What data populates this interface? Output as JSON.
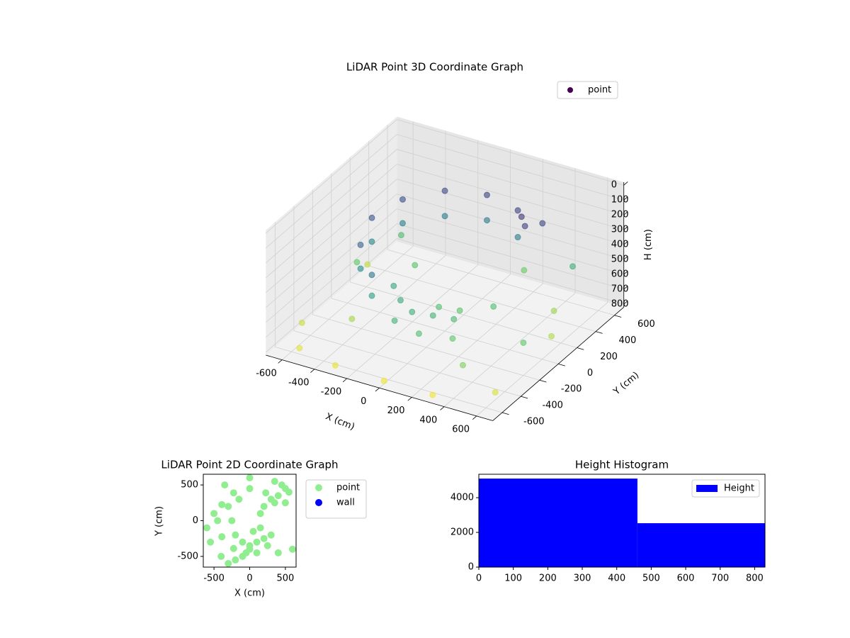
{
  "chart_data": [
    {
      "type": "scatter3d",
      "title": "LiDAR Point 3D Coordinate Graph",
      "xlabel": "X (cm)",
      "ylabel": "Y (cm)",
      "zlabel": "H (cm)",
      "xlim": [
        -700,
        700
      ],
      "ylim": [
        -700,
        700
      ],
      "zlim": [
        820,
        -20
      ],
      "xticks": [
        -600,
        -400,
        -200,
        0,
        200,
        400,
        600
      ],
      "yticks": [
        -600,
        -400,
        -200,
        0,
        200,
        400,
        600
      ],
      "zticks": [
        0,
        100,
        200,
        300,
        400,
        500,
        600,
        700,
        800
      ],
      "colormap": "viridis",
      "alpha": 0.6,
      "grid": true,
      "legend": "upper right",
      "series": [
        {
          "name": "point",
          "color": "#440154",
          "x": [
            225,
            0,
            -225,
            -390,
            -450,
            -390,
            -225,
            225,
            0,
            -225,
            -390,
            -450,
            -390,
            -225,
            300,
            350,
            400,
            -100,
            0,
            100,
            200,
            -200,
            50,
            150,
            250,
            -50,
            100,
            500,
            -500,
            300,
            600,
            -600,
            400,
            -300,
            200,
            -650,
            -550,
            -300,
            0,
            300,
            600,
            600,
            -650,
            -400,
            500
          ],
          "y": [
            390,
            450,
            390,
            225,
            0,
            -225,
            -390,
            390,
            450,
            390,
            225,
            0,
            -225,
            -390,
            300,
            250,
            350,
            -300,
            -350,
            -300,
            -250,
            -200,
            -150,
            -100,
            -350,
            -450,
            -450,
            500,
            400,
            0,
            -200,
            100,
            -500,
            200,
            500,
            -400,
            -600,
            -650,
            -650,
            -650,
            -500,
            100,
            300,
            -300,
            300
          ],
          "z": [
            150,
            150,
            160,
            180,
            200,
            240,
            300,
            330,
            320,
            330,
            340,
            360,
            400,
            440,
            120,
            140,
            160,
            480,
            500,
            520,
            540,
            470,
            560,
            580,
            600,
            520,
            560,
            500,
            550,
            560,
            600,
            600,
            650,
            580,
            620,
            750,
            780,
            790,
            800,
            800,
            770,
            720,
            740,
            700,
            690
          ]
        }
      ]
    },
    {
      "type": "scatter",
      "title": "LiDAR Point 2D Coordinate Graph",
      "xlabel": "X (cm)",
      "ylabel": "Y (cm)",
      "xlim": [
        -650,
        650
      ],
      "ylim": [
        -650,
        650
      ],
      "xticks": [
        -500,
        0,
        500
      ],
      "yticks": [
        -500,
        0,
        500
      ],
      "legend": "outside right",
      "series": [
        {
          "name": "point",
          "color": "#90ee90",
          "x": [
            225,
            0,
            -225,
            -390,
            -450,
            -390,
            -225,
            300,
            350,
            400,
            450,
            500,
            550,
            -100,
            0,
            100,
            200,
            -200,
            50,
            150,
            250,
            -50,
            100,
            -300,
            -500,
            -600,
            -550,
            -400,
            -300,
            -200,
            -100,
            0,
            300,
            400,
            600,
            500,
            -250,
            150,
            -150,
            350,
            0,
            -350,
            200
          ],
          "y": [
            390,
            450,
            390,
            225,
            0,
            -225,
            -390,
            300,
            250,
            350,
            500,
            450,
            400,
            -300,
            -350,
            -300,
            -250,
            -200,
            -150,
            -100,
            -350,
            -450,
            -450,
            200,
            100,
            -100,
            -300,
            -500,
            -600,
            -550,
            -500,
            -400,
            -200,
            -450,
            -400,
            250,
            0,
            100,
            300,
            550,
            600,
            500,
            200
          ]
        },
        {
          "name": "wall",
          "color": "#0000ff",
          "x": [],
          "y": []
        }
      ]
    },
    {
      "type": "histogram",
      "title": "Height Histogram",
      "bins": [
        0,
        460,
        830
      ],
      "counts": [
        5100,
        2530
      ],
      "xlim": [
        0,
        830
      ],
      "ylim": [
        0,
        5350
      ],
      "xticks": [
        0,
        100,
        200,
        300,
        400,
        500,
        600,
        700,
        800
      ],
      "yticks": [
        0,
        2000,
        4000
      ],
      "series_name": "Height",
      "color": "#0000ff",
      "legend": "upper right"
    }
  ]
}
